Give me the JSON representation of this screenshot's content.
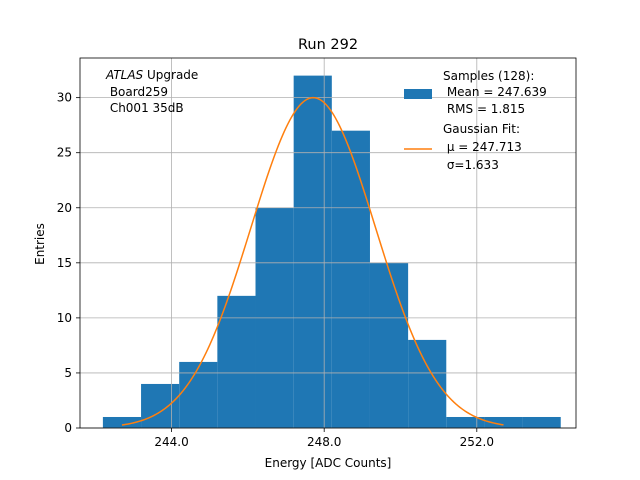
{
  "chart_data": {
    "type": "histogram",
    "title": "Run 292",
    "xlabel": "Energy [ADC Counts]",
    "ylabel": "Entries",
    "xlim": [
      241.6,
      254.6
    ],
    "ylim": [
      0,
      33.6
    ],
    "xticks": [
      244,
      248,
      252
    ],
    "xtick_labels": [
      "244.0",
      "248.0",
      "252.0"
    ],
    "yticks": [
      0,
      5,
      10,
      15,
      20,
      25,
      30
    ],
    "ytick_labels": [
      "0",
      "5",
      "10",
      "15",
      "20",
      "25",
      "30"
    ],
    "grid": true,
    "bins": [
      {
        "x0": 242.2,
        "x1": 243.2,
        "count": 1
      },
      {
        "x0": 243.2,
        "x1": 244.2,
        "count": 4
      },
      {
        "x0": 244.2,
        "x1": 245.2,
        "count": 6
      },
      {
        "x0": 245.2,
        "x1": 246.2,
        "count": 12
      },
      {
        "x0": 246.2,
        "x1": 247.2,
        "count": 20
      },
      {
        "x0": 247.2,
        "x1": 248.2,
        "count": 32
      },
      {
        "x0": 248.2,
        "x1": 249.2,
        "count": 27
      },
      {
        "x0": 249.2,
        "x1": 250.2,
        "count": 15
      },
      {
        "x0": 250.2,
        "x1": 251.2,
        "count": 8
      },
      {
        "x0": 251.2,
        "x1": 252.2,
        "count": 1
      },
      {
        "x0": 252.2,
        "x1": 253.2,
        "count": 1
      },
      {
        "x0": 253.2,
        "x1": 254.2,
        "count": 1
      }
    ],
    "fit": {
      "type": "gaussian",
      "mu": 247.713,
      "sigma": 1.633,
      "amplitude": 30,
      "x_range": [
        242.7,
        252.7
      ]
    },
    "series": [
      {
        "name": "Samples (128):",
        "color": "#1f77b4"
      },
      {
        "name": "Gaussian Fit:",
        "color": "#ff7f0e"
      }
    ],
    "legend": {
      "placement": "top-right",
      "entries": [
        {
          "lines": [
            "Samples (128):",
            " Mean = 247.639",
            " RMS = 1.815"
          ]
        },
        {
          "lines": [
            "Gaussian Fit:",
            " μ = 247.713",
            " σ=1.633"
          ]
        }
      ]
    },
    "annotation": {
      "italic": "ATLAS",
      "rest": " Upgrade",
      "line2": " Board259",
      "line3": " Ch001 35dB"
    }
  }
}
